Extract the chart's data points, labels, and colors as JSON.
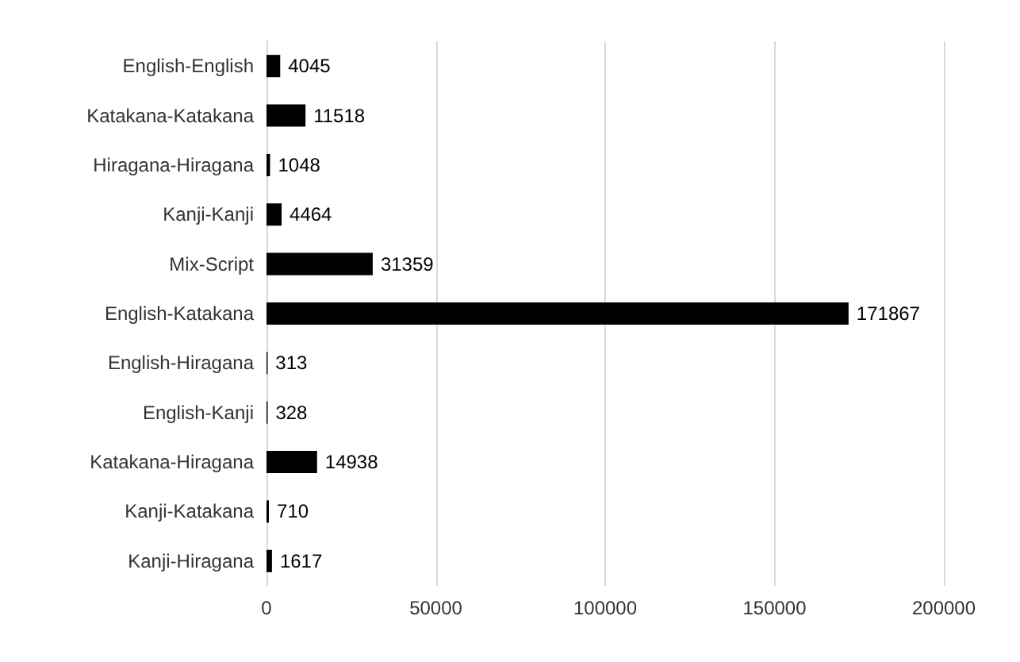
{
  "chart_data": {
    "type": "bar",
    "orientation": "horizontal",
    "categories": [
      "English-English",
      "Katakana-Katakana",
      "Hiragana-Hiragana",
      "Kanji-Kanji",
      "Mix-Script",
      "English-Katakana",
      "English-Hiragana",
      "English-Kanji",
      "Katakana-Hiragana",
      "Kanji-Katakana",
      "Kanji-Hiragana"
    ],
    "values": [
      4045,
      11518,
      1048,
      4464,
      31359,
      171867,
      313,
      328,
      14938,
      710,
      1617
    ],
    "color": "#000000",
    "xlim": [
      0,
      200000
    ],
    "xticks": [
      0,
      50000,
      100000,
      150000,
      200000
    ],
    "grid": "x",
    "data_labels": true
  }
}
